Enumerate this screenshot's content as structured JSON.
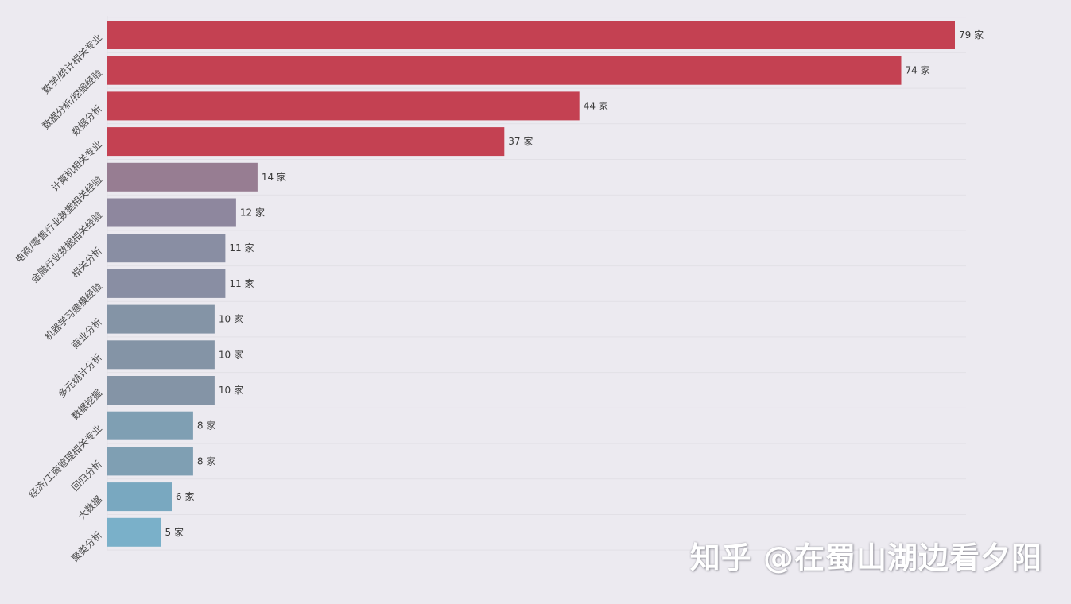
{
  "chart_data": {
    "type": "bar",
    "orientation": "horizontal",
    "categories": [
      "数学/统计相关专业",
      "数据分析/挖掘经验",
      "数据分析",
      "计算机相关专业",
      "电商/零售行业数据相关经验",
      "金融行业数据相关经验",
      "相关分析",
      "机器学习建模经验",
      "商业分析",
      "多元统计分析",
      "数据挖掘",
      "经济/工商管理相关专业",
      "回归分析",
      "大数据",
      "聚类分析"
    ],
    "values": [
      79,
      74,
      44,
      37,
      14,
      12,
      11,
      11,
      10,
      10,
      10,
      8,
      8,
      6,
      5
    ],
    "value_suffix": " 家",
    "colors": [
      "#c44152",
      "#c44152",
      "#c44152",
      "#c44152",
      "#977d92",
      "#8e879e",
      "#898ea3",
      "#898ea3",
      "#8494a6",
      "#8494a6",
      "#8494a6",
      "#7f9fb3",
      "#7f9fb3",
      "#79a8c0",
      "#7ab0c9"
    ],
    "xlim": [
      0,
      80
    ],
    "grid": true,
    "title": "",
    "xlabel": "",
    "ylabel": ""
  },
  "watermark": "知乎 @在蜀山湖边看夕阳"
}
